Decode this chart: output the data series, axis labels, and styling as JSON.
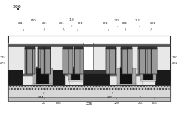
{
  "fig_width": 2.5,
  "fig_height": 1.59,
  "dpi": 100,
  "white": "#ffffff",
  "black": "#000000",
  "dark_gray": "#333333",
  "med_gray": "#888888",
  "light_gray": "#cccccc",
  "very_light_gray": "#eeeeee",
  "bg_white": "#f8f8f8",
  "substrate_color": "#e8e8e8",
  "box_color": "#d0d0d0",
  "sti_color": "#aaaaaa",
  "imd_color": "#e0e0e0",
  "gate_poly_color": "#111111",
  "silicide_color": "#777777",
  "spacer_color": "#bbbbbb",
  "contact_color": "#555555",
  "ann_fs": 3.0,
  "ann_color": "#222222"
}
